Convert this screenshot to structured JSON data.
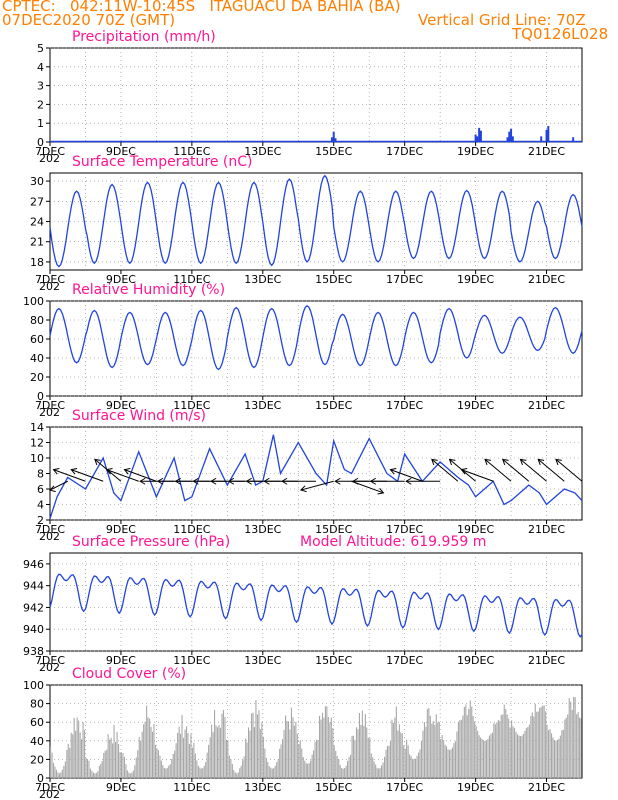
{
  "header": {
    "left_line1": "CPTEC:   042:11W-10:45S   ITAGUACU DA BAHIA (BA)",
    "left_line2": "07DEC2020 70Z (GMT)",
    "right_line1": "Vertical Grid Line: 70Z",
    "right_line2": "TQ0126L028"
  },
  "x_axis": {
    "labels": [
      "7DEC",
      "9DEC",
      "11DEC",
      "13DEC",
      "15DEC",
      "17DEC",
      "19DEC",
      "21DEC"
    ],
    "label_days": [
      7,
      9,
      11,
      13,
      15,
      17,
      19,
      21
    ],
    "range_days": [
      7,
      22
    ],
    "year_label": "202"
  },
  "colors": {
    "line": "#2244dd",
    "title": "#ff1493",
    "header": "#ff7f00",
    "cloud": "#a8a8a8",
    "wind_arrow": "#000000"
  },
  "chart_data": [
    {
      "id": "precipitation",
      "type": "bar",
      "title": "Precipitation (mm/h)",
      "ylim": [
        0,
        5
      ],
      "yticks": [
        0,
        1,
        2,
        3,
        4,
        5
      ],
      "grid": true,
      "x_days": [
        14.95,
        15.0,
        15.05,
        19.0,
        19.05,
        19.1,
        19.15,
        19.9,
        19.95,
        20.0,
        20.05,
        20.85,
        21.0,
        21.05,
        21.75
      ],
      "values": [
        0.25,
        0.55,
        0.2,
        0.4,
        0.3,
        0.75,
        0.6,
        0.25,
        0.55,
        0.7,
        0.3,
        0.3,
        0.65,
        0.85,
        0.25
      ]
    },
    {
      "id": "temperature",
      "type": "line",
      "title": "Surface Temperature (nC)",
      "ylim": [
        16.8,
        31.2
      ],
      "yticks": [
        18,
        21,
        24,
        27,
        30
      ],
      "grid": true,
      "mean": 23.5,
      "amp": 5.6,
      "trough_phase": 0.25,
      "start_value": 23.2,
      "daily_max": [
        28.5,
        29.5,
        29.8,
        29.8,
        29.8,
        29.8,
        30.3,
        30.8,
        28.5,
        28.5,
        28.5,
        28.6,
        28.5,
        27.0,
        28.0
      ],
      "daily_min": [
        17.3,
        17.8,
        17.8,
        17.8,
        17.8,
        17.8,
        17.5,
        18.0,
        18.0,
        18.0,
        18.5,
        18.5,
        18.5,
        18.0,
        18.5
      ]
    },
    {
      "id": "humidity",
      "type": "line",
      "title": "Relative Humidity (%)",
      "ylim": [
        0,
        100
      ],
      "yticks": [
        0,
        20,
        40,
        60,
        80,
        100
      ],
      "grid": true,
      "peak_phase": 0.25,
      "daily_max": [
        92,
        90,
        88,
        88,
        90,
        93,
        92,
        95,
        86,
        88,
        88,
        92,
        85,
        83,
        93
      ],
      "daily_min": [
        35,
        30,
        33,
        32,
        28,
        30,
        32,
        33,
        32,
        32,
        35,
        40,
        45,
        48,
        45
      ]
    },
    {
      "id": "wind",
      "type": "line",
      "title": "Surface Wind (m/s)",
      "ylim": [
        2,
        14
      ],
      "yticks": [
        2,
        4,
        6,
        8,
        10,
        12,
        14
      ],
      "grid": true,
      "x_days": [
        7.0,
        7.2,
        7.5,
        8.0,
        8.5,
        8.8,
        9.0,
        9.5,
        10.0,
        10.5,
        10.8,
        11.0,
        11.5,
        12.0,
        12.5,
        12.8,
        13.0,
        13.3,
        13.5,
        14.0,
        14.5,
        14.8,
        15.0,
        15.3,
        15.5,
        16.0,
        16.5,
        16.8,
        17.0,
        17.5,
        18.0,
        18.5,
        18.8,
        19.0,
        19.5,
        19.8,
        20.0,
        20.5,
        20.8,
        21.0,
        21.5,
        21.8,
        22.0
      ],
      "values": [
        2.2,
        5.0,
        7.5,
        6.0,
        10.0,
        5.5,
        4.5,
        10.8,
        5.0,
        10.0,
        4.5,
        5.0,
        11.2,
        6.5,
        10.5,
        6.5,
        7.0,
        13.0,
        8.0,
        12.0,
        8.0,
        6.5,
        12.2,
        8.5,
        8.0,
        12.5,
        8.0,
        7.0,
        10.5,
        7.0,
        9.5,
        7.5,
        6.5,
        5.0,
        7.0,
        4.0,
        4.5,
        6.5,
        5.5,
        4.0,
        6.0,
        5.5,
        4.5
      ],
      "arrows": [
        {
          "day": 7.5,
          "dir": "wnw"
        },
        {
          "day": 8.0,
          "dir": "wsw"
        },
        {
          "day": 8.5,
          "dir": "wsw"
        },
        {
          "day": 9.0,
          "dir": "sw"
        },
        {
          "day": 9.5,
          "dir": "wsw"
        },
        {
          "day": 10.0,
          "dir": "wsw"
        },
        {
          "day": 10.5,
          "dir": "w"
        },
        {
          "day": 11.0,
          "dir": "w"
        },
        {
          "day": 11.5,
          "dir": "w"
        },
        {
          "day": 12.0,
          "dir": "w"
        },
        {
          "day": 12.5,
          "dir": "w"
        },
        {
          "day": 13.0,
          "dir": "w"
        },
        {
          "day": 13.5,
          "dir": "w"
        },
        {
          "day": 14.0,
          "dir": "w"
        },
        {
          "day": 14.5,
          "dir": "w"
        },
        {
          "day": 15.0,
          "dir": "wnw"
        },
        {
          "day": 15.5,
          "dir": "ese"
        },
        {
          "day": 16.0,
          "dir": "e"
        },
        {
          "day": 16.5,
          "dir": "w"
        },
        {
          "day": 17.0,
          "dir": "w"
        },
        {
          "day": 17.5,
          "dir": "wsw"
        },
        {
          "day": 18.0,
          "dir": "w"
        },
        {
          "day": 18.5,
          "dir": "sw"
        },
        {
          "day": 19.0,
          "dir": "sw"
        },
        {
          "day": 19.5,
          "dir": "wsw"
        },
        {
          "day": 20.0,
          "dir": "sw"
        },
        {
          "day": 20.5,
          "dir": "sw"
        },
        {
          "day": 21.0,
          "dir": "sw"
        },
        {
          "day": 21.5,
          "dir": "sw"
        },
        {
          "day": 22.0,
          "dir": "sw"
        }
      ]
    },
    {
      "id": "pressure",
      "type": "line",
      "title": "Surface Pressure (hPa)",
      "subtitle": "Model Altitude: 619.959 m",
      "ylim": [
        938,
        947
      ],
      "yticks": [
        938,
        940,
        942,
        944,
        946
      ],
      "grid": true,
      "trend_start": 944.0,
      "trend_end": 941.5,
      "amp": 2.2
    },
    {
      "id": "cloud",
      "type": "bar",
      "title": "Cloud Cover (%)",
      "ylim": [
        0,
        100
      ],
      "yticks": [
        0,
        20,
        40,
        60,
        80,
        100
      ],
      "grid": true,
      "daily_max": [
        80,
        60,
        85,
        70,
        90,
        95,
        80,
        85,
        82,
        80,
        85,
        92,
        80,
        90,
        95
      ],
      "daily_min": [
        5,
        5,
        5,
        10,
        10,
        5,
        10,
        15,
        10,
        10,
        20,
        30,
        40,
        45,
        40
      ]
    }
  ]
}
